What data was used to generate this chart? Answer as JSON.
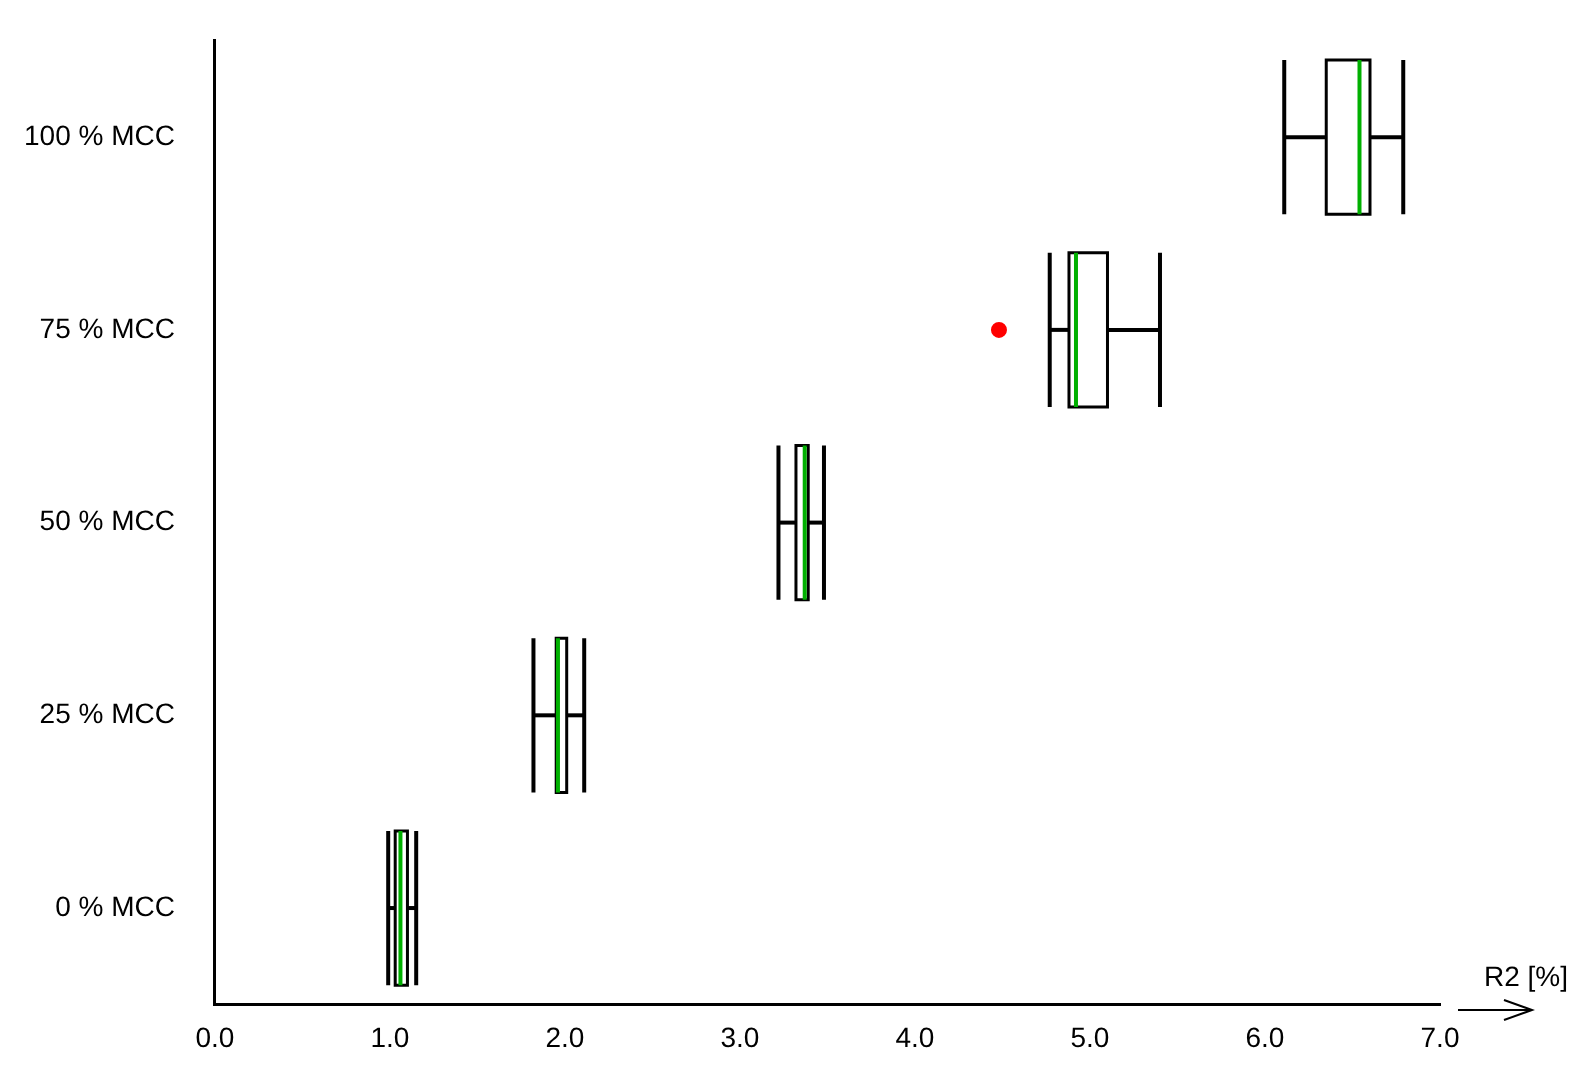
{
  "chart_data": {
    "type": "box",
    "orientation": "horizontal",
    "xlabel": "R2 [%]",
    "categories": [
      "100 % MCC",
      "75 % MCC",
      "50 % MCC",
      "25 % MCC",
      "0 % MCC"
    ],
    "xlim": [
      0,
      7
    ],
    "xticks": [
      {
        "value": 0,
        "label": "0.0"
      },
      {
        "value": 1,
        "label": "1.0"
      },
      {
        "value": 2,
        "label": "2.0"
      },
      {
        "value": 3,
        "label": "3.0"
      },
      {
        "value": 4,
        "label": "4.0"
      },
      {
        "value": 5,
        "label": "5.0"
      },
      {
        "value": 6,
        "label": "6.0"
      },
      {
        "value": 7,
        "label": "7.0"
      }
    ],
    "grid": false,
    "legend": false,
    "series": [
      {
        "color": "#000000",
        "boxes": [
          {
            "low": 6.11,
            "q1": 6.35,
            "median": 6.54,
            "q3": 6.6,
            "high": 6.79
          },
          {
            "low": 4.77,
            "q1": 4.88,
            "median": 4.92,
            "q3": 5.1,
            "high": 5.4
          },
          {
            "low": 3.22,
            "q1": 3.32,
            "median": 3.37,
            "q3": 3.39,
            "high": 3.48
          },
          {
            "low": 1.82,
            "q1": 1.95,
            "median": 1.96,
            "q3": 2.01,
            "high": 2.11
          },
          {
            "low": 0.99,
            "q1": 1.03,
            "median": 1.06,
            "q3": 1.1,
            "high": 1.15
          }
        ]
      },
      {
        "type": "scatter",
        "color": "#ff0000",
        "values": [
          null,
          4.48,
          null,
          null,
          null
        ]
      }
    ]
  }
}
